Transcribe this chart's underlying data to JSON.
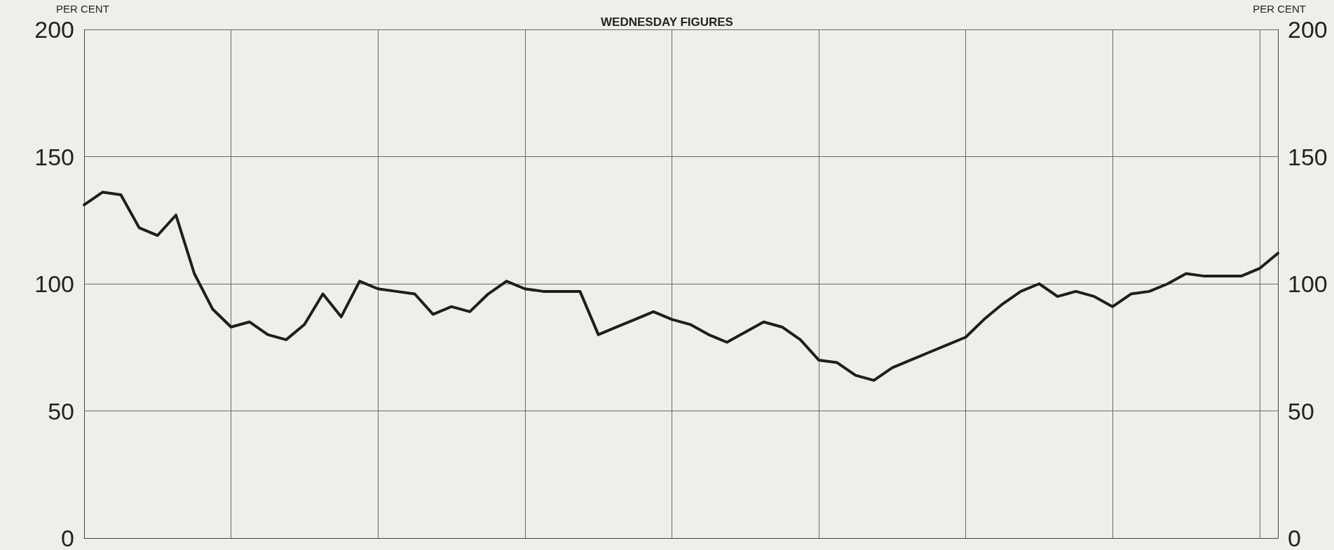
{
  "chart_data": {
    "type": "line",
    "title": "WEDNESDAY FIGURES",
    "ylabel": "PER CENT",
    "y2label": "PER CENT",
    "categories": [
      null,
      null,
      null,
      null,
      null,
      null,
      null,
      null,
      null,
      null,
      null,
      null,
      null,
      null,
      null,
      null,
      null,
      null,
      null,
      null,
      null,
      null,
      null,
      null,
      null,
      null,
      null,
      null,
      null,
      null,
      null,
      null,
      null,
      null,
      null,
      null,
      null,
      null,
      null,
      null,
      null,
      null,
      null,
      null,
      null,
      null,
      null,
      null,
      null,
      null,
      null,
      null,
      null,
      null,
      null,
      null,
      null,
      null,
      null,
      null,
      null,
      null,
      null,
      null,
      null,
      null
    ],
    "series": [
      {
        "color": "#1e1e1e",
        "values": [
          131,
          136,
          135,
          122,
          119,
          127,
          104,
          90,
          83,
          85,
          80,
          78,
          84,
          96,
          87,
          101,
          98,
          97,
          96,
          88,
          91,
          89,
          96,
          101,
          98,
          97,
          97,
          97,
          80,
          83,
          86,
          89,
          86,
          84,
          80,
          77,
          81,
          85,
          83,
          78,
          70,
          69,
          64,
          62,
          67,
          70,
          73,
          76,
          79,
          86,
          92,
          97,
          100,
          95,
          97,
          95,
          91,
          96,
          97,
          100,
          104,
          103,
          103,
          103,
          106,
          112
        ]
      }
    ],
    "ylim": [
      0,
      200
    ],
    "yticks": [
      0,
      50,
      100,
      150,
      200
    ],
    "y2lim": [
      0,
      200
    ],
    "y2ticks": [
      0,
      50,
      100,
      150,
      200
    ],
    "grid": true,
    "tick_labels": "y",
    "marker": "none",
    "line_style": "solid"
  }
}
